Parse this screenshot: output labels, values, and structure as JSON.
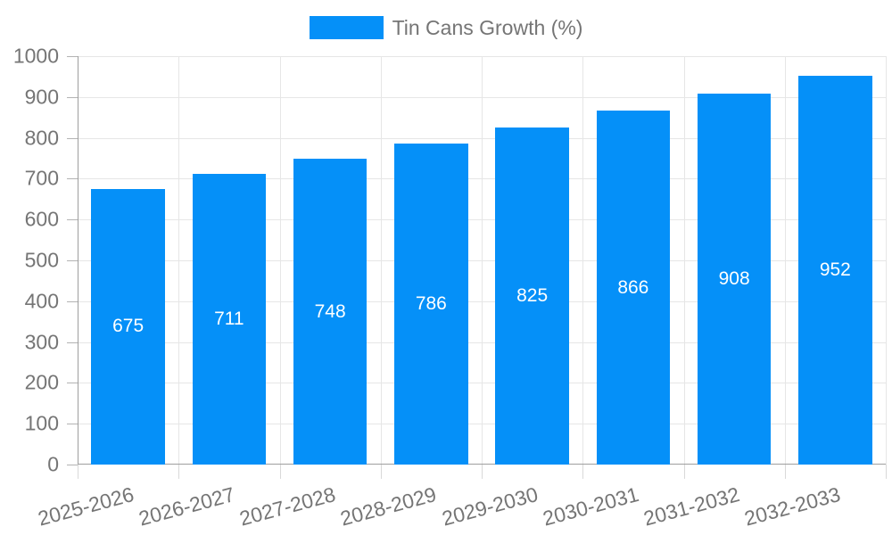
{
  "colors": {
    "bar": "#0590f8",
    "axis_text": "#757575",
    "gridline": "#e6e6e6",
    "axis_line": "#9e9e9e",
    "y_tick": "#b3b3b3",
    "x_tick": "#d9d9d9",
    "value_label": "#ffffff",
    "background": "#ffffff"
  },
  "legend": {
    "label": "Tin Cans Growth (%)",
    "position": "top"
  },
  "chart_data": {
    "type": "bar",
    "title": "Tin Cans Growth (%)",
    "categories": [
      "2025-2026",
      "2026-2027",
      "2027-2028",
      "2028-2029",
      "2029-2030",
      "2030-2031",
      "2031-2032",
      "2032-2033"
    ],
    "series": [
      {
        "name": "Tin Cans Growth (%)",
        "values": [
          675,
          711,
          748,
          786,
          825,
          866,
          908,
          952
        ]
      }
    ],
    "xlabel": "",
    "ylabel": "",
    "ylim": [
      0,
      1000
    ],
    "yticks": [
      0,
      100,
      200,
      300,
      400,
      500,
      600,
      700,
      800,
      900,
      1000
    ],
    "grid": true,
    "legend_position": "top",
    "value_labels_position": "inside-center",
    "x_label_rotation_deg": -15
  }
}
